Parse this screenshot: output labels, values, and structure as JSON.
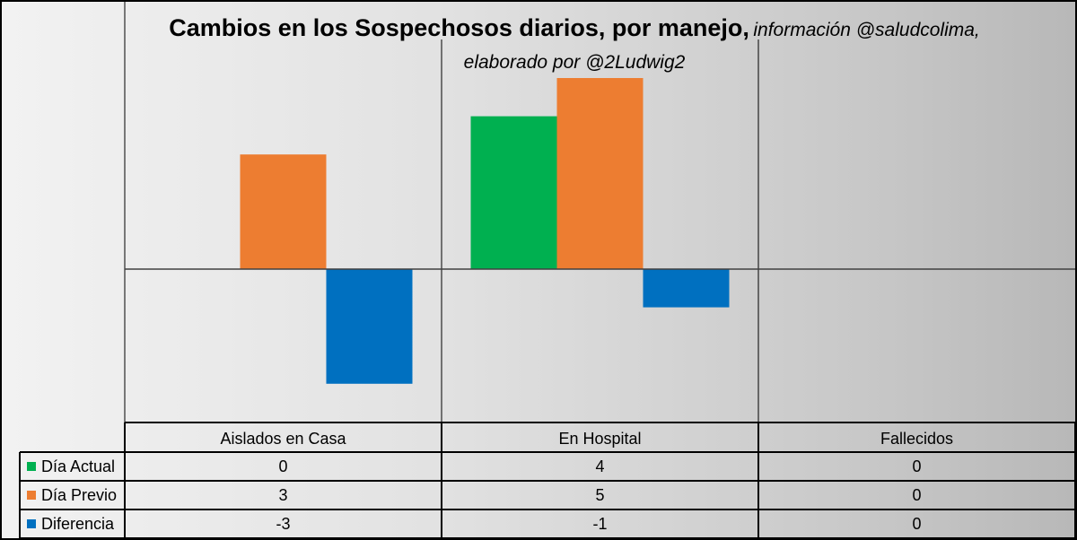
{
  "chart_data": {
    "type": "bar",
    "title": "Cambios en los Sospechosos diarios, por manejo,",
    "subtitle": "información @saludcolima, elaborado por @2Ludwig2",
    "categories": [
      "Aislados en Casa",
      "En Hospital",
      "Fallecidos"
    ],
    "series": [
      {
        "name": "Día Actual",
        "values": [
          0,
          4,
          0
        ],
        "color": "#00b050"
      },
      {
        "name": "Día Previo",
        "values": [
          3,
          5,
          0
        ],
        "color": "#ed7d31"
      },
      {
        "name": "Diferencia",
        "values": [
          -3,
          -1,
          0
        ],
        "color": "#0070c0"
      }
    ],
    "ylim": [
      -3.8,
      6
    ],
    "grid": true,
    "data_table": true
  }
}
